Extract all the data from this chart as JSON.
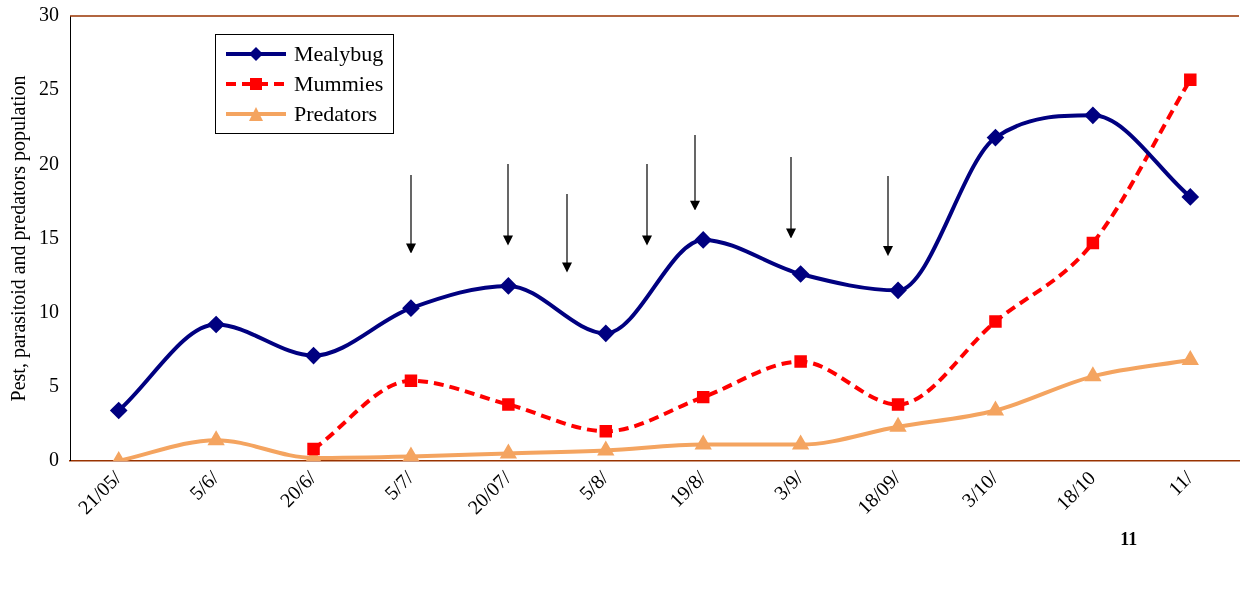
{
  "chart_data": {
    "type": "line",
    "ylabel": "Pest, parasitoid and predators population",
    "categories": [
      "21/05/",
      "5/6/",
      "20/6/",
      "5/7/",
      "20/07/",
      "5/8/",
      "19/8/",
      "3/9/",
      "18/09/",
      "3/10/",
      "18/10",
      "11/"
    ],
    "series": [
      {
        "name": "Mealybug",
        "color": "#000080",
        "marker": "diamond",
        "line_style": "solid",
        "values": [
          3.4,
          9.2,
          7.1,
          10.3,
          11.8,
          8.6,
          14.9,
          12.6,
          11.5,
          21.8,
          23.3,
          17.8
        ]
      },
      {
        "name": "Mummies",
        "color": "#ff0000",
        "marker": "square",
        "line_style": "dashed",
        "values": [
          null,
          null,
          0.8,
          5.4,
          3.8,
          2.0,
          4.3,
          6.7,
          3.8,
          9.4,
          14.7,
          25.7
        ]
      },
      {
        "name": "Predators",
        "color": "#f4a460",
        "marker": "triangle",
        "line_style": "solid",
        "values": [
          0,
          1.4,
          0.2,
          0.3,
          0.5,
          0.7,
          1.1,
          1.1,
          2.3,
          3.4,
          5.7,
          6.8
        ]
      }
    ],
    "ylim": [
      0,
      30
    ],
    "yticks": [
      0,
      5,
      10,
      15,
      20,
      25,
      30
    ],
    "grid": false,
    "legend": "top left",
    "annotations": [
      "11"
    ]
  }
}
